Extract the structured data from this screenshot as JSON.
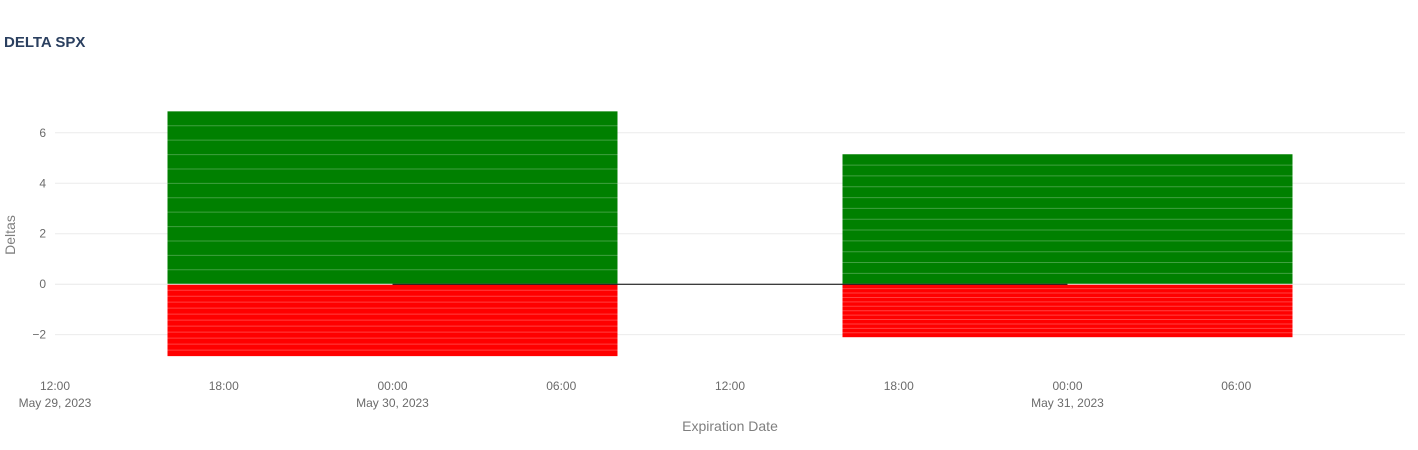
{
  "chart_data": {
    "type": "bar",
    "title": "DELTA SPX",
    "xlabel": "Expiration Date",
    "ylabel": "Deltas",
    "ylim": [
      -3.4,
      7.3
    ],
    "xlim": [
      "2023-05-29T12:00",
      "2023-05-31T12:00"
    ],
    "y_ticks": [
      6,
      4,
      2,
      0,
      -2
    ],
    "y_tick_labels": [
      "6",
      "4",
      "2",
      "0",
      "−2"
    ],
    "x_ticks": [
      {
        "at": "2023-05-29T12:00",
        "label": "12:00",
        "sublabel": "May 29, 2023"
      },
      {
        "at": "2023-05-29T18:00",
        "label": "18:00",
        "sublabel": ""
      },
      {
        "at": "2023-05-30T00:00",
        "label": "00:00",
        "sublabel": "May 30, 2023"
      },
      {
        "at": "2023-05-30T06:00",
        "label": "06:00",
        "sublabel": ""
      },
      {
        "at": "2023-05-30T12:00",
        "label": "12:00",
        "sublabel": ""
      },
      {
        "at": "2023-05-30T18:00",
        "label": "18:00",
        "sublabel": ""
      },
      {
        "at": "2023-05-31T00:00",
        "label": "00:00",
        "sublabel": "May 31, 2023"
      },
      {
        "at": "2023-05-31T06:00",
        "label": "06:00",
        "sublabel": ""
      }
    ],
    "categories": [
      "2023-05-30",
      "2023-05-31"
    ],
    "series": [
      {
        "color": "#008000",
        "values": [
          6.85,
          5.15
        ]
      },
      {
        "color": "#ff0000",
        "values": [
          -2.85,
          -2.1
        ]
      }
    ],
    "grid": true,
    "zero_line": true
  }
}
